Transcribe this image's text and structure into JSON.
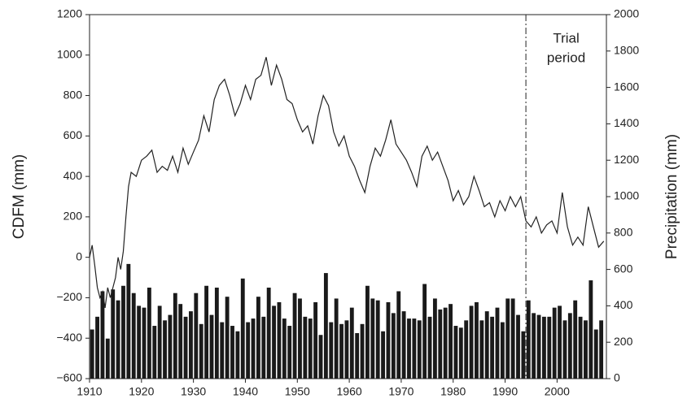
{
  "chart_data": {
    "type": "line-bar",
    "ylabel": "CDFM (mm)",
    "y2label": "Precipitation (mm)",
    "xlim": [
      1910,
      2009.5
    ],
    "xticks": [
      1910,
      1920,
      1930,
      1940,
      1950,
      1960,
      1970,
      1980,
      1990,
      2000
    ],
    "ylim": [
      -600,
      1200
    ],
    "yticks": [
      {
        "value": -600,
        "label": "−600"
      },
      {
        "value": -400,
        "label": "−400"
      },
      {
        "value": -200,
        "label": "−200"
      },
      0,
      200,
      400,
      600,
      800,
      1000,
      1200
    ],
    "y2lim": [
      0,
      2000
    ],
    "y2ticks": [
      0,
      200,
      400,
      600,
      800,
      1000,
      1200,
      1400,
      1600,
      1800,
      2000
    ],
    "annotation": {
      "text": [
        "Trial",
        "period"
      ],
      "x": 1994
    },
    "series": [
      {
        "name": "CDFM",
        "type": "line",
        "color": "#222222",
        "x": [
          1910,
          1910.5,
          1911,
          1911.5,
          1912,
          1912.5,
          1913,
          1913.5,
          1914,
          1915,
          1915.5,
          1916,
          1916.5,
          1917,
          1917.5,
          1918,
          1919,
          1920,
          1921,
          1922,
          1923,
          1924,
          1925,
          1926,
          1927,
          1928,
          1929,
          1930,
          1931,
          1932,
          1933,
          1934,
          1935,
          1936,
          1937,
          1938,
          1939,
          1940,
          1941,
          1942,
          1943,
          1944,
          1945,
          1946,
          1947,
          1948,
          1949,
          1950,
          1951,
          1952,
          1953,
          1954,
          1955,
          1956,
          1957,
          1958,
          1959,
          1960,
          1961,
          1962,
          1963,
          1964,
          1965,
          1966,
          1967,
          1968,
          1969,
          1970,
          1971,
          1972,
          1973,
          1974,
          1975,
          1976,
          1977,
          1978,
          1979,
          1980,
          1981,
          1982,
          1983,
          1984,
          1985,
          1986,
          1987,
          1988,
          1989,
          1990,
          1991,
          1992,
          1993,
          1994,
          1995,
          1996,
          1997,
          1998,
          1999,
          2000,
          2001,
          2002,
          2003,
          2004,
          2005,
          2006,
          2007,
          2008,
          2009
        ],
        "values": [
          0,
          60,
          -40,
          -150,
          -200,
          -170,
          -250,
          -150,
          -200,
          -100,
          0,
          -60,
          30,
          200,
          350,
          420,
          400,
          480,
          500,
          530,
          420,
          450,
          430,
          500,
          420,
          540,
          460,
          520,
          580,
          700,
          620,
          780,
          850,
          880,
          800,
          700,
          760,
          850,
          780,
          880,
          900,
          990,
          850,
          950,
          880,
          780,
          760,
          680,
          620,
          650,
          560,
          700,
          800,
          750,
          620,
          550,
          600,
          500,
          450,
          380,
          320,
          450,
          540,
          500,
          580,
          680,
          560,
          520,
          480,
          420,
          350,
          500,
          550,
          480,
          520,
          450,
          380,
          280,
          330,
          260,
          300,
          400,
          330,
          250,
          270,
          200,
          280,
          230,
          300,
          250,
          300,
          180,
          150,
          200,
          120,
          160,
          180,
          120,
          320,
          150,
          60,
          100,
          60,
          250,
          150,
          50,
          80
        ]
      },
      {
        "name": "Precipitation",
        "type": "bar",
        "axis": "y2",
        "color": "#1a1a1a",
        "x": [
          1910,
          1911,
          1912,
          1913,
          1914,
          1915,
          1916,
          1917,
          1918,
          1919,
          1920,
          1921,
          1922,
          1923,
          1924,
          1925,
          1926,
          1927,
          1928,
          1929,
          1930,
          1931,
          1932,
          1933,
          1934,
          1935,
          1936,
          1937,
          1938,
          1939,
          1940,
          1941,
          1942,
          1943,
          1944,
          1945,
          1946,
          1947,
          1948,
          1949,
          1950,
          1951,
          1952,
          1953,
          1954,
          1955,
          1956,
          1957,
          1958,
          1959,
          1960,
          1961,
          1962,
          1963,
          1964,
          1965,
          1966,
          1967,
          1968,
          1969,
          1970,
          1971,
          1972,
          1973,
          1974,
          1975,
          1976,
          1977,
          1978,
          1979,
          1980,
          1981,
          1982,
          1983,
          1984,
          1985,
          1986,
          1987,
          1988,
          1989,
          1990,
          1991,
          1992,
          1993,
          1994,
          1995,
          1996,
          1997,
          1998,
          1999,
          2000,
          2001,
          2002,
          2003,
          2004,
          2005,
          2006,
          2007,
          2008
        ],
        "values": [
          270,
          340,
          480,
          220,
          490,
          430,
          510,
          630,
          470,
          400,
          390,
          500,
          290,
          400,
          320,
          350,
          470,
          410,
          340,
          370,
          470,
          300,
          510,
          350,
          500,
          310,
          450,
          290,
          260,
          550,
          310,
          330,
          450,
          340,
          500,
          400,
          420,
          330,
          290,
          470,
          440,
          340,
          330,
          420,
          240,
          580,
          310,
          440,
          300,
          320,
          390,
          250,
          300,
          510,
          440,
          430,
          260,
          420,
          360,
          480,
          370,
          330,
          330,
          320,
          520,
          340,
          440,
          380,
          390,
          410,
          290,
          280,
          320,
          400,
          420,
          320,
          370,
          340,
          390,
          310,
          440,
          440,
          350,
          260,
          430,
          360,
          350,
          340,
          340,
          390,
          400,
          320,
          360,
          430,
          340,
          320,
          540,
          270,
          320
        ]
      }
    ]
  }
}
